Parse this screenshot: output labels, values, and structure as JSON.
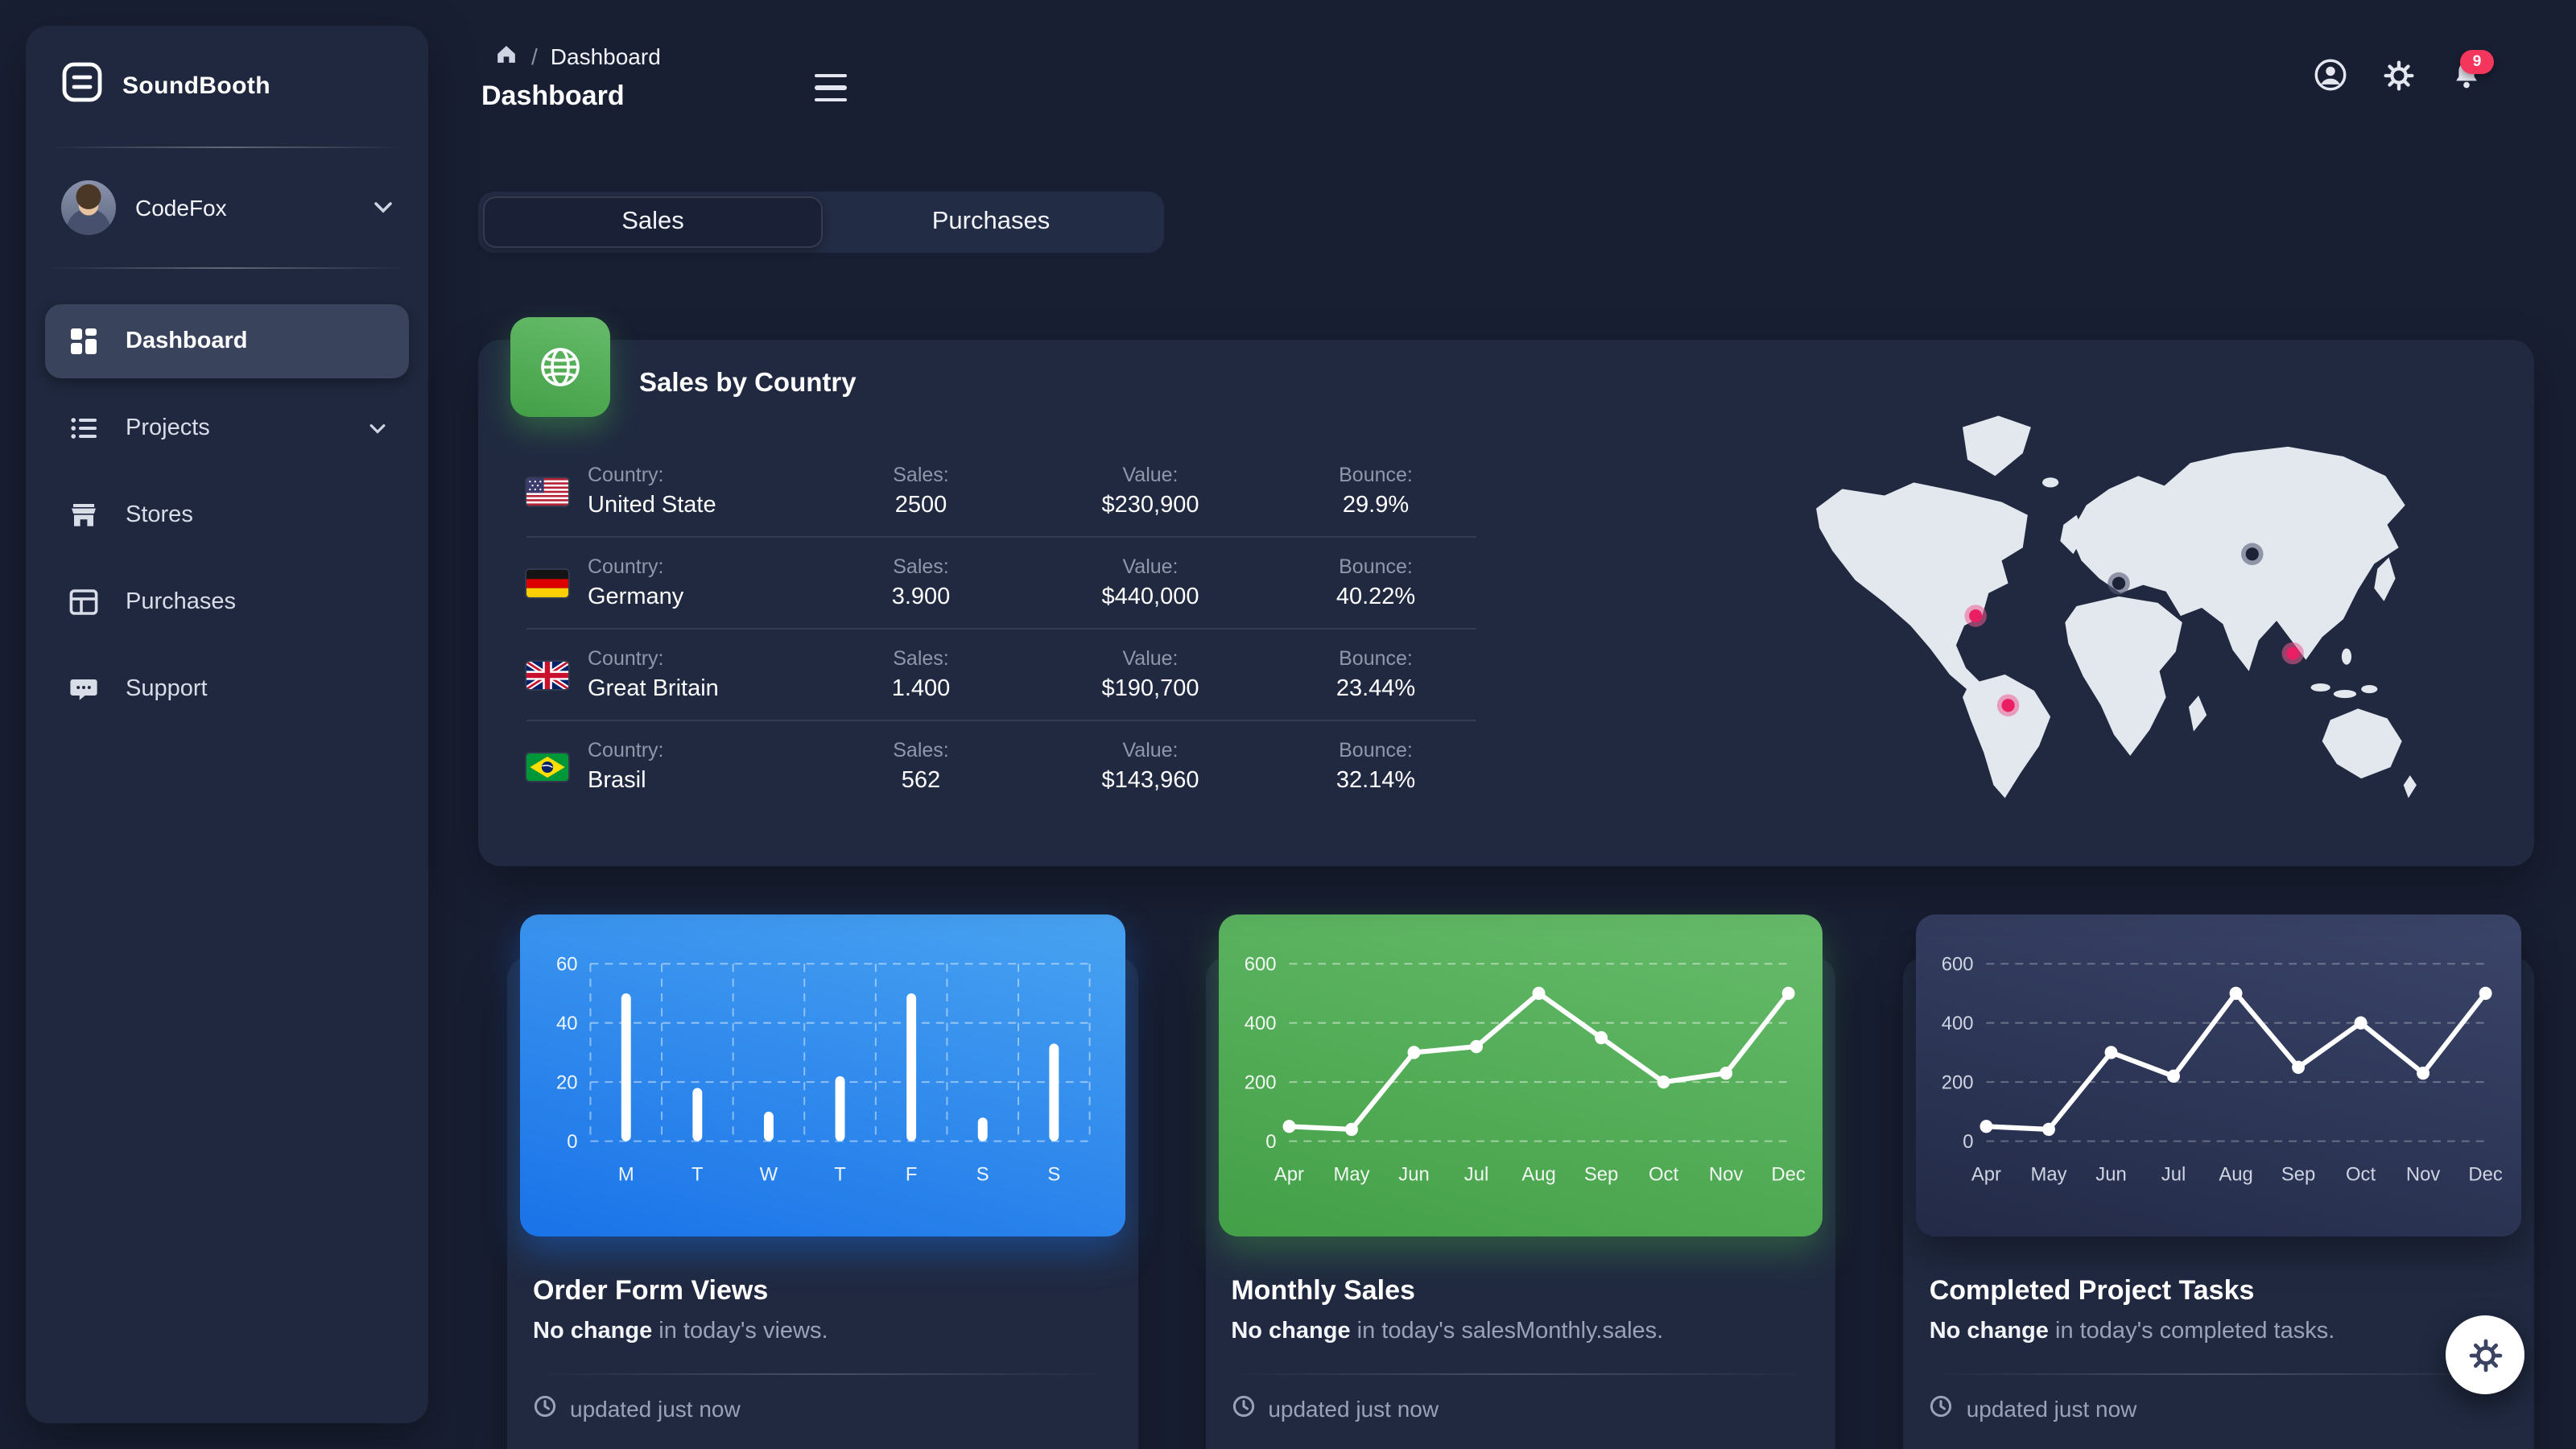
{
  "colors": {
    "background": "#191f33",
    "sidebar": "#1f283e",
    "card": "#202940",
    "accent_blue": "#1a73e8",
    "accent_green": "#43a047",
    "pink_marker": "#e91e63",
    "badge_red": "#f5365c"
  },
  "icons": {
    "brand": "layers-icon",
    "breadcrumb_home": "home-icon",
    "menu": "hamburger-icon",
    "account": "person-circle-icon",
    "settings": "gear-icon",
    "notifications": "bell-icon",
    "sales_card": "globe-icon",
    "footer_time": "clock-icon",
    "fab": "gear-icon"
  },
  "sidebar": {
    "brand": "SoundBooth",
    "user": {
      "name": "CodeFox"
    },
    "items": [
      {
        "label": "Dashboard",
        "active": true
      },
      {
        "label": "Projects",
        "has_submenu": true
      },
      {
        "label": "Stores"
      },
      {
        "label": "Purchases"
      },
      {
        "label": "Support"
      }
    ]
  },
  "breadcrumb": {
    "page": "Dashboard",
    "title": "Dashboard"
  },
  "topbar": {
    "notification_count": "9"
  },
  "tabs": {
    "sales": "Sales",
    "purchases": "Purchases"
  },
  "sales_by_country": {
    "title": "Sales by Country",
    "rows": [
      {
        "flag": "us",
        "country_label": "Country:",
        "country": "United State",
        "sales_label": "Sales:",
        "sales": "2500",
        "value_label": "Value:",
        "value": "$230,900",
        "bounce_label": "Bounce:",
        "bounce": "29.9%"
      },
      {
        "flag": "de",
        "country_label": "Country:",
        "country": "Germany",
        "sales_label": "Sales:",
        "sales": "3.900",
        "value_label": "Value:",
        "value": "$440,000",
        "bounce_label": "Bounce:",
        "bounce": "40.22%"
      },
      {
        "flag": "gb",
        "country_label": "Country:",
        "country": "Great Britain",
        "sales_label": "Sales:",
        "sales": "1.400",
        "value_label": "Value:",
        "value": "$190,700",
        "bounce_label": "Bounce:",
        "bounce": "23.44%"
      },
      {
        "flag": "br",
        "country_label": "Country:",
        "country": "Brasil",
        "sales_label": "Sales:",
        "sales": "562",
        "value_label": "Value:",
        "value": "$143,960",
        "bounce_label": "Bounce:",
        "bounce": "32.14%"
      }
    ]
  },
  "stat_cards": [
    {
      "title": "Order Form Views",
      "highlight": "No change",
      "subtitle": " in today's views.",
      "footer": "updated just now"
    },
    {
      "title": "Monthly Sales",
      "highlight": "No change",
      "subtitle": " in today's salesMonthly.sales.",
      "footer": "updated just now"
    },
    {
      "title": "Completed Project Tasks",
      "highlight": "No change",
      "subtitle": " in today's completed tasks.",
      "footer": "updated just now"
    }
  ],
  "chart_data": [
    {
      "type": "bar",
      "title": "Order Form Views",
      "categories": [
        "M",
        "T",
        "W",
        "T",
        "F",
        "S",
        "S"
      ],
      "values": [
        50,
        18,
        10,
        22,
        50,
        8,
        33
      ],
      "ylim": [
        0,
        60
      ],
      "yticks": [
        0,
        20,
        40,
        60
      ],
      "grid": true,
      "theme": "blue"
    },
    {
      "type": "line",
      "title": "Monthly Sales",
      "categories": [
        "Apr",
        "May",
        "Jun",
        "Jul",
        "Aug",
        "Sep",
        "Oct",
        "Nov",
        "Dec"
      ],
      "values": [
        50,
        40,
        300,
        320,
        500,
        350,
        200,
        230,
        500
      ],
      "ylim": [
        0,
        600
      ],
      "yticks": [
        0,
        200,
        400,
        600
      ],
      "grid": true,
      "theme": "green"
    },
    {
      "type": "line",
      "title": "Completed Project Tasks",
      "categories": [
        "Apr",
        "May",
        "Jun",
        "Jul",
        "Aug",
        "Sep",
        "Oct",
        "Nov",
        "Dec"
      ],
      "values": [
        50,
        40,
        300,
        220,
        500,
        250,
        400,
        230,
        500
      ],
      "ylim": [
        0,
        600
      ],
      "yticks": [
        0,
        200,
        400,
        600
      ],
      "grid": true,
      "theme": "dark"
    }
  ]
}
